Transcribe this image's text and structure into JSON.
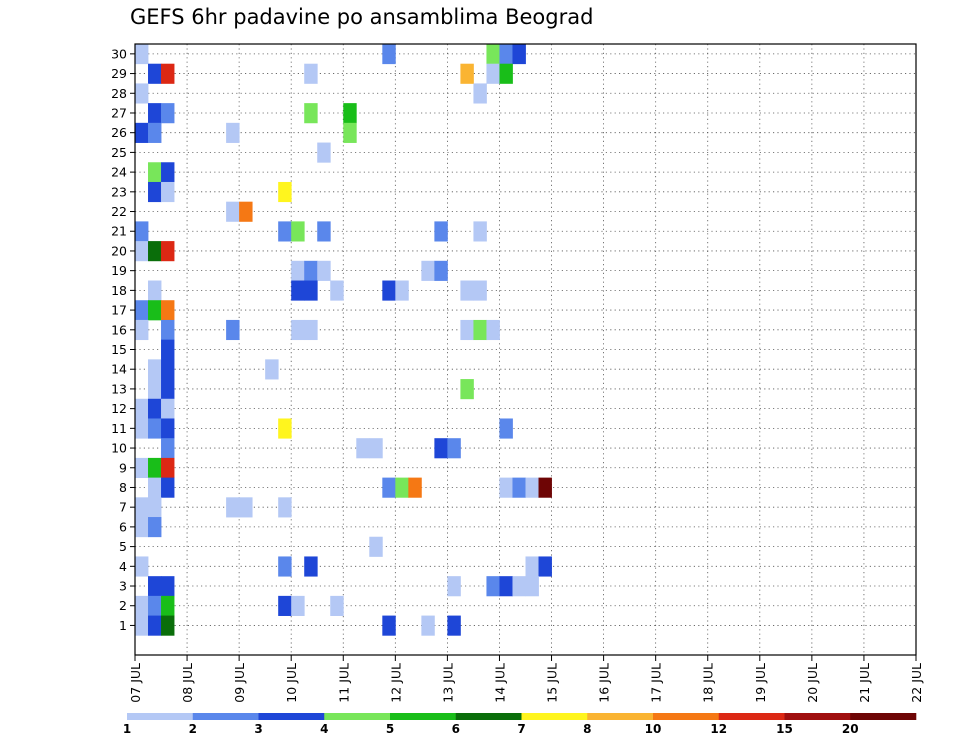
{
  "chart_data": {
    "type": "heatmap",
    "title": "GEFS 6hr padavine po ansamblima Beograd",
    "xlabel": "",
    "ylabel": "",
    "x_tick_labels": [
      "07 JUL",
      "08 JUL",
      "09 JUL",
      "10 JUL",
      "11 JUL",
      "12 JUL",
      "13 JUL",
      "14 JUL",
      "15 JUL",
      "16 JUL",
      "17 JUL",
      "18 JUL",
      "19 JUL",
      "20 JUL",
      "21 JUL",
      "22 JUL"
    ],
    "x_range_days": [
      0,
      15
    ],
    "steps_per_day": 4,
    "members": [
      1,
      2,
      3,
      4,
      5,
      6,
      7,
      8,
      9,
      10,
      11,
      12,
      13,
      14,
      15,
      16,
      17,
      18,
      19,
      20,
      21,
      22,
      23,
      24,
      25,
      26,
      27,
      28,
      29,
      30
    ],
    "grid": true,
    "colorbar": {
      "position": "bottom",
      "labels": [
        "1",
        "2",
        "3",
        "4",
        "5",
        "6",
        "7",
        "8",
        "10",
        "12",
        "15",
        "20"
      ],
      "colors": [
        "#b4c8f5",
        "#5a87eb",
        "#1e46d7",
        "#78e65a",
        "#19be19",
        "#0a6e0a",
        "#fff51e",
        "#fab432",
        "#f57814",
        "#dc2814",
        "#a00f0f",
        "#6e0505"
      ]
    },
    "cells_note": "each cell: [member, step index from 07 JUL 00z (6h steps), color class 1-12]",
    "cells": [
      [
        30,
        0,
        1
      ],
      [
        30,
        19,
        2
      ],
      [
        30,
        27,
        4
      ],
      [
        30,
        28,
        2
      ],
      [
        30,
        29,
        3
      ],
      [
        29,
        1,
        3
      ],
      [
        29,
        2,
        10
      ],
      [
        29,
        13,
        1
      ],
      [
        29,
        25,
        8
      ],
      [
        29,
        27,
        1
      ],
      [
        29,
        28,
        5
      ],
      [
        28,
        0,
        1
      ],
      [
        28,
        26,
        1
      ],
      [
        27,
        1,
        3
      ],
      [
        27,
        2,
        2
      ],
      [
        27,
        13,
        4
      ],
      [
        27,
        16,
        5
      ],
      [
        26,
        0,
        3
      ],
      [
        26,
        1,
        2
      ],
      [
        26,
        7,
        1
      ],
      [
        26,
        16,
        4
      ],
      [
        25,
        14,
        1
      ],
      [
        24,
        1,
        4
      ],
      [
        24,
        2,
        3
      ],
      [
        23,
        1,
        3
      ],
      [
        23,
        2,
        1
      ],
      [
        23,
        11,
        7
      ],
      [
        22,
        7,
        1
      ],
      [
        22,
        8,
        9
      ],
      [
        21,
        0,
        2
      ],
      [
        21,
        11,
        2
      ],
      [
        21,
        12,
        4
      ],
      [
        21,
        14,
        2
      ],
      [
        21,
        23,
        2
      ],
      [
        21,
        26,
        1
      ],
      [
        20,
        0,
        1
      ],
      [
        20,
        1,
        6
      ],
      [
        20,
        2,
        10
      ],
      [
        19,
        12,
        1
      ],
      [
        19,
        13,
        2
      ],
      [
        19,
        14,
        1
      ],
      [
        19,
        22,
        1
      ],
      [
        19,
        23,
        2
      ],
      [
        18,
        1,
        1
      ],
      [
        18,
        12,
        3
      ],
      [
        18,
        13,
        3
      ],
      [
        18,
        15,
        1
      ],
      [
        18,
        19,
        3
      ],
      [
        18,
        20,
        1
      ],
      [
        18,
        25,
        1
      ],
      [
        18,
        26,
        1
      ],
      [
        17,
        0,
        2
      ],
      [
        17,
        1,
        5
      ],
      [
        17,
        2,
        9
      ],
      [
        16,
        0,
        1
      ],
      [
        16,
        2,
        2
      ],
      [
        16,
        7,
        2
      ],
      [
        16,
        12,
        1
      ],
      [
        16,
        13,
        1
      ],
      [
        16,
        25,
        1
      ],
      [
        16,
        26,
        4
      ],
      [
        16,
        27,
        1
      ],
      [
        15,
        2,
        3
      ],
      [
        14,
        1,
        1
      ],
      [
        14,
        2,
        3
      ],
      [
        14,
        10,
        1
      ],
      [
        13,
        1,
        1
      ],
      [
        13,
        2,
        3
      ],
      [
        13,
        25,
        4
      ],
      [
        12,
        0,
        1
      ],
      [
        12,
        1,
        3
      ],
      [
        12,
        2,
        1
      ],
      [
        11,
        0,
        1
      ],
      [
        11,
        1,
        2
      ],
      [
        11,
        2,
        3
      ],
      [
        11,
        11,
        7
      ],
      [
        11,
        28,
        2
      ],
      [
        10,
        2,
        2
      ],
      [
        10,
        17,
        1
      ],
      [
        10,
        18,
        1
      ],
      [
        10,
        23,
        3
      ],
      [
        10,
        24,
        2
      ],
      [
        9,
        0,
        1
      ],
      [
        9,
        1,
        5
      ],
      [
        9,
        2,
        10
      ],
      [
        8,
        1,
        1
      ],
      [
        8,
        2,
        3
      ],
      [
        8,
        19,
        2
      ],
      [
        8,
        20,
        4
      ],
      [
        8,
        21,
        9
      ],
      [
        8,
        28,
        1
      ],
      [
        8,
        29,
        2
      ],
      [
        8,
        30,
        1
      ],
      [
        8,
        31,
        12
      ],
      [
        7,
        0,
        1
      ],
      [
        7,
        1,
        1
      ],
      [
        7,
        7,
        1
      ],
      [
        7,
        8,
        1
      ],
      [
        7,
        11,
        1
      ],
      [
        6,
        0,
        1
      ],
      [
        6,
        1,
        2
      ],
      [
        5,
        18,
        1
      ],
      [
        4,
        0,
        1
      ],
      [
        4,
        11,
        2
      ],
      [
        4,
        13,
        3
      ],
      [
        4,
        30,
        1
      ],
      [
        4,
        31,
        3
      ],
      [
        3,
        1,
        3
      ],
      [
        3,
        2,
        3
      ],
      [
        3,
        24,
        1
      ],
      [
        3,
        27,
        2
      ],
      [
        3,
        28,
        3
      ],
      [
        3,
        29,
        1
      ],
      [
        3,
        30,
        1
      ],
      [
        2,
        0,
        1
      ],
      [
        2,
        1,
        2
      ],
      [
        2,
        2,
        5
      ],
      [
        2,
        11,
        3
      ],
      [
        2,
        12,
        1
      ],
      [
        2,
        15,
        1
      ],
      [
        1,
        0,
        1
      ],
      [
        1,
        1,
        3
      ],
      [
        1,
        2,
        6
      ],
      [
        1,
        19,
        3
      ],
      [
        1,
        22,
        1
      ],
      [
        1,
        24,
        3
      ]
    ]
  }
}
